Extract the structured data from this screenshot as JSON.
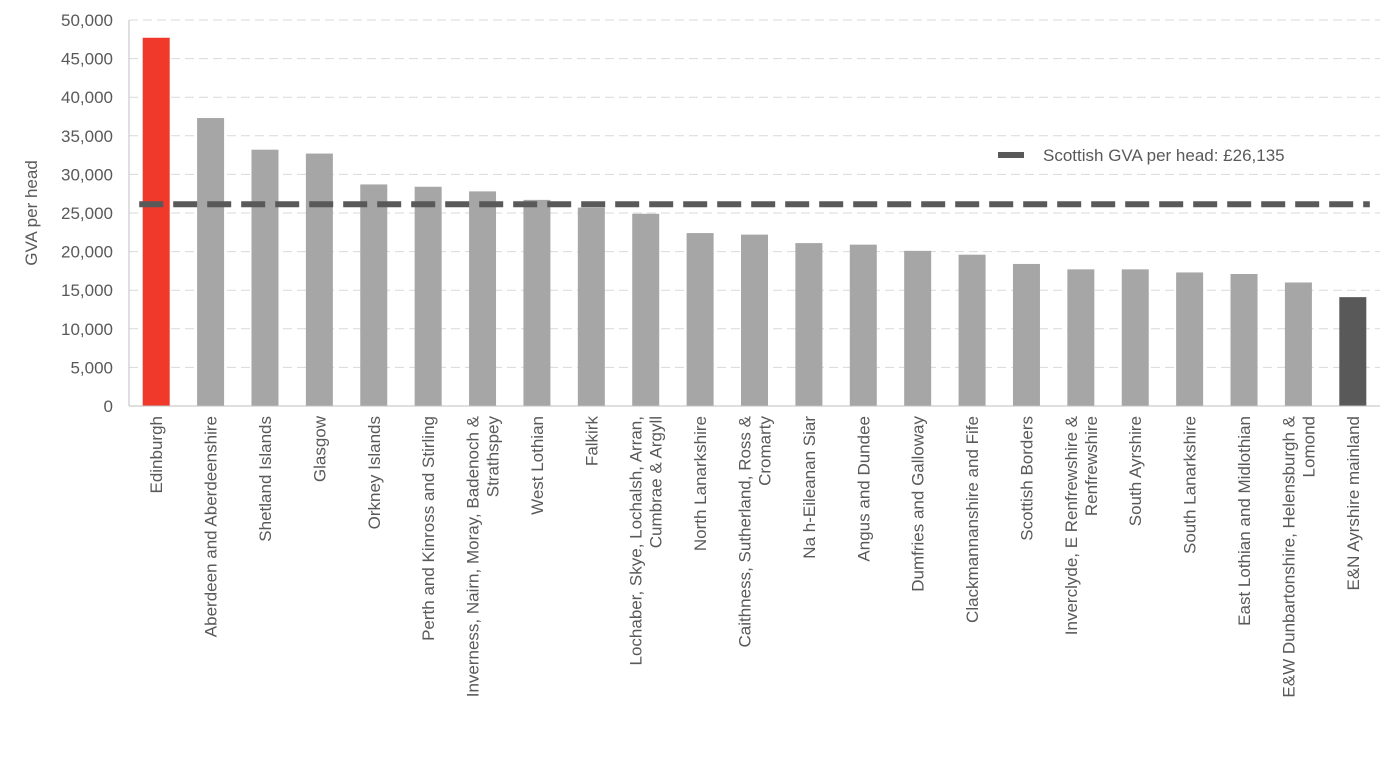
{
  "chart_data": {
    "type": "bar",
    "title": "",
    "xlabel": "",
    "ylabel": "GVA per head",
    "ylim": [
      0,
      50000
    ],
    "y_ticks": [
      0,
      5000,
      10000,
      15000,
      20000,
      25000,
      30000,
      35000,
      40000,
      45000,
      50000
    ],
    "y_tick_labels": [
      "0",
      "5,000",
      "10,000",
      "15,000",
      "20,000",
      "25,000",
      "30,000",
      "35,000",
      "40,000",
      "45,000",
      "50,000"
    ],
    "grid": true,
    "categories": [
      [
        "Edinburgh"
      ],
      [
        "Aberdeen and Aberdeenshire"
      ],
      [
        "Shetland Islands"
      ],
      [
        "Glasgow"
      ],
      [
        "Orkney Islands"
      ],
      [
        "Perth and Kinross and Stirling"
      ],
      [
        "Inverness, Nairn, Moray, Badenoch &",
        "Strathspey"
      ],
      [
        "West Lothian"
      ],
      [
        "Falkirk"
      ],
      [
        "Lochaber, Skye, Lochalsh, Arran,",
        "Cumbrae & Argyll"
      ],
      [
        "North Lanarkshire"
      ],
      [
        "Caithness, Sutherland, Ross &",
        "Cromarty"
      ],
      [
        "Na h-Eileanan Siar"
      ],
      [
        "Angus and Dundee"
      ],
      [
        "Dumfries and Galloway"
      ],
      [
        "Clackmannanshire and Fife"
      ],
      [
        "Scottish Borders"
      ],
      [
        "Inverclyde, E Renfrewshire &",
        "Renfrewshire"
      ],
      [
        "South Ayrshire"
      ],
      [
        "South Lanarkshire"
      ],
      [
        "East Lothian and Midlothian"
      ],
      [
        "E&W Dunbartonshire, Helensburgh &",
        "Lomond"
      ],
      [
        "E&N Ayrshire mainland"
      ]
    ],
    "values": [
      47700,
      37300,
      33200,
      32700,
      28700,
      28400,
      27800,
      26700,
      25700,
      24900,
      22400,
      22200,
      21100,
      20900,
      20100,
      19600,
      18400,
      17700,
      17700,
      17300,
      17100,
      16000,
      14100
    ],
    "bar_colors": [
      "#f0382b",
      "#a6a6a6",
      "#a6a6a6",
      "#a6a6a6",
      "#a6a6a6",
      "#a6a6a6",
      "#a6a6a6",
      "#a6a6a6",
      "#a6a6a6",
      "#a6a6a6",
      "#a6a6a6",
      "#a6a6a6",
      "#a6a6a6",
      "#a6a6a6",
      "#a6a6a6",
      "#a6a6a6",
      "#a6a6a6",
      "#a6a6a6",
      "#a6a6a6",
      "#a6a6a6",
      "#a6a6a6",
      "#a6a6a6",
      "#595959"
    ],
    "reference_line": {
      "value": 26135,
      "label": "Scottish GVA per head: £26,135",
      "color": "#595959",
      "style": "dashed"
    },
    "legend_position": "top-right"
  }
}
